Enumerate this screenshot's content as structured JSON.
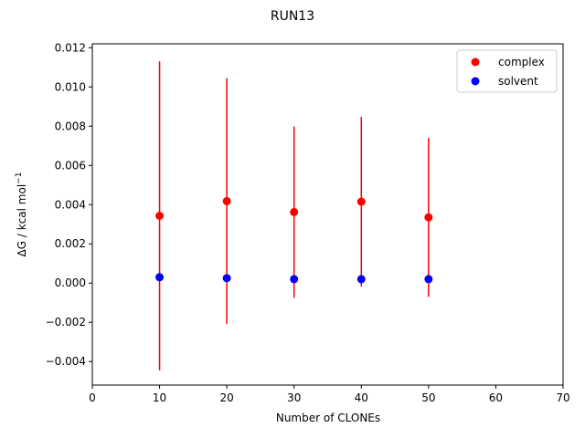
{
  "chart_data": {
    "type": "scatter",
    "title": "RUN13",
    "xlabel": "Number of CLONEs",
    "ylabel_prefix": "ΔG / kcal mol",
    "ylabel_sup": "−1",
    "xlim": [
      0,
      70
    ],
    "ylim": [
      -0.0052,
      0.0122
    ],
    "xticks": [
      0,
      10,
      20,
      30,
      40,
      50,
      60,
      70
    ],
    "xtick_labels": [
      "0",
      "10",
      "20",
      "30",
      "40",
      "50",
      "60",
      "70"
    ],
    "yticks": [
      -0.004,
      -0.002,
      0.0,
      0.002,
      0.004,
      0.006,
      0.008,
      0.01,
      0.012
    ],
    "ytick_labels": [
      "−0.004",
      "−0.002",
      "0.000",
      "0.002",
      "0.004",
      "0.006",
      "0.008",
      "0.010",
      "0.012"
    ],
    "grid": false,
    "legend_position": "top-right",
    "series": [
      {
        "name": "complex",
        "color": "#ff0000",
        "x": [
          10,
          20,
          30,
          40,
          50
        ],
        "y": [
          0.00343,
          0.00418,
          0.00362,
          0.00415,
          0.00335
        ],
        "yerr": [
          0.00788,
          0.00627,
          0.00437,
          0.00433,
          0.00405
        ]
      },
      {
        "name": "solvent",
        "color": "#0000ff",
        "x": [
          10,
          20,
          30,
          40,
          50
        ],
        "y": [
          0.0003,
          0.00025,
          0.0002,
          0.0002,
          0.0002
        ],
        "yerr": [
          0,
          0,
          0,
          0,
          0
        ]
      }
    ]
  }
}
